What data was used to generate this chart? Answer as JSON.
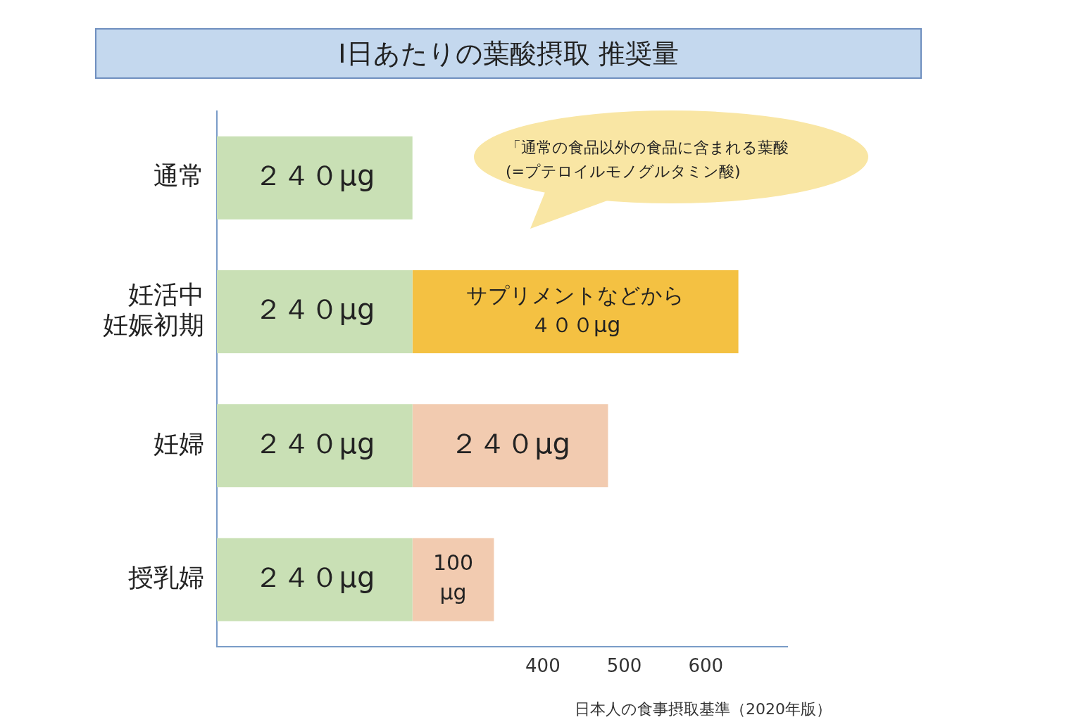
{
  "chart_data": {
    "type": "bar",
    "orientation": "horizontal",
    "stacked": true,
    "title": "I日あたりの葉酸摂取 推奨量",
    "categories": [
      "通常",
      "妊活中妊娠初期",
      "妊婦",
      "授乳婦"
    ],
    "series": [
      {
        "color": "#c9e0b5",
        "values": [
          240,
          240,
          240,
          240
        ],
        "value_labels": [
          "２４０μg",
          "２４０μg",
          "２４０μg",
          "２４０μg"
        ]
      },
      {
        "color": "#f4c142",
        "values": [
          null,
          400,
          null,
          null
        ],
        "value_labels": [
          null,
          "サプリメントなどから４００μg",
          null,
          null
        ]
      },
      {
        "color": "#f2cbb0",
        "values": [
          null,
          null,
          240,
          100
        ],
        "value_labels": [
          null,
          null,
          "２４０μg",
          "100\nμg"
        ]
      }
    ],
    "xlim": [
      0,
      700
    ],
    "xticks": [
      400,
      500,
      600
    ],
    "grid": false,
    "legend": false,
    "annotations": [
      "「通常の食品以外の食品に含まれる葉酸\n(=プテロイルモノグルタミン酸)",
      "日本人の食事摂取基準（2020年版）"
    ]
  }
}
